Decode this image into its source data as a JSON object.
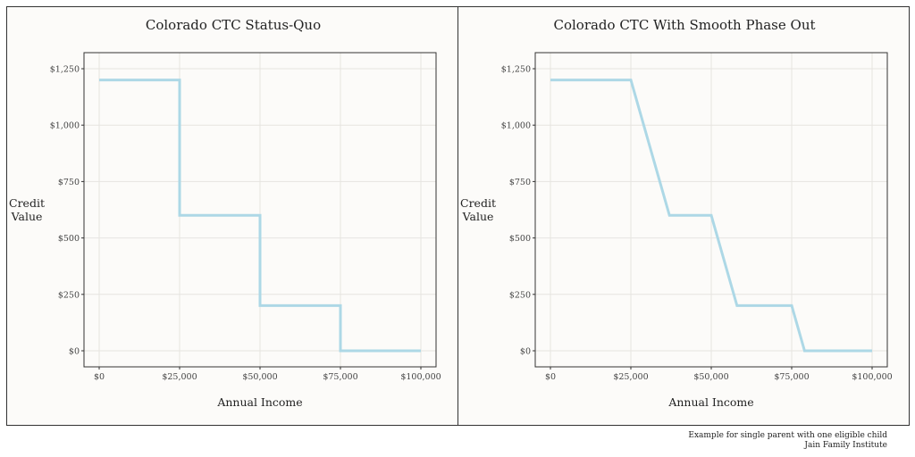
{
  "chart_data": [
    {
      "type": "line",
      "title": "Colorado CTC Status-Quo",
      "xlabel": "Annual Income",
      "ylabel_lines": [
        "Credit",
        "Value"
      ],
      "x_ticks": [
        0,
        25000,
        50000,
        75000,
        100000
      ],
      "x_tick_labels": [
        "$0",
        "$25,000",
        "$50,000",
        "$75,000",
        "$100,000"
      ],
      "y_ticks": [
        0,
        250,
        500,
        750,
        1000,
        1250
      ],
      "y_tick_labels": [
        "$0",
        "$250",
        "$500",
        "$750",
        "$1,000",
        "$1,250"
      ],
      "xlim": [
        0,
        100000
      ],
      "ylim": [
        0,
        1250
      ],
      "grid": true,
      "series": [
        {
          "color": "#add8e6",
          "x": [
            0,
            25000,
            25000,
            50000,
            50000,
            75000,
            75000,
            100000
          ],
          "y": [
            1200,
            1200,
            600,
            600,
            200,
            200,
            0,
            0
          ]
        }
      ]
    },
    {
      "type": "line",
      "title": "Colorado CTC With Smooth Phase Out",
      "xlabel": "Annual Income",
      "ylabel_lines": [
        "Credit",
        "Value"
      ],
      "x_ticks": [
        0,
        25000,
        50000,
        75000,
        100000
      ],
      "x_tick_labels": [
        "$0",
        "$25,000",
        "$50,000",
        "$75,000",
        "$100,000"
      ],
      "y_ticks": [
        0,
        250,
        500,
        750,
        1000,
        1250
      ],
      "y_tick_labels": [
        "$0",
        "$250",
        "$500",
        "$750",
        "$1,000",
        "$1,250"
      ],
      "xlim": [
        0,
        100000
      ],
      "ylim": [
        0,
        1250
      ],
      "grid": true,
      "series": [
        {
          "color": "#add8e6",
          "x": [
            0,
            25000,
            37000,
            50000,
            58000,
            75000,
            79000,
            100000
          ],
          "y": [
            1200,
            1200,
            600,
            600,
            200,
            200,
            0,
            0
          ]
        }
      ]
    }
  ],
  "caption": {
    "line1": "Example for single parent with one eligible child",
    "line2": "Jain Family Institute"
  }
}
